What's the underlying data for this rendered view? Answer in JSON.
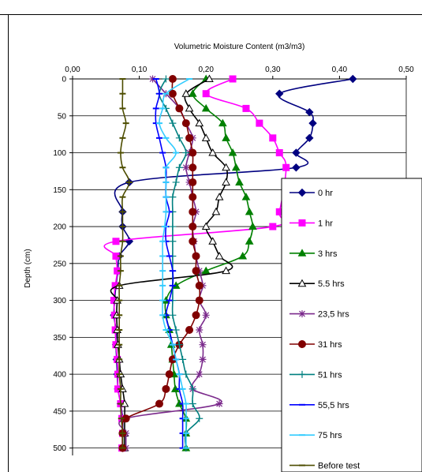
{
  "chart_data": {
    "type": "line",
    "title": "",
    "xlabel": "Volumetric Moisture Content (m3/m3)",
    "ylabel": "Depth (cm)",
    "xlim": [
      0,
      0.5
    ],
    "ylim": [
      0,
      510
    ],
    "x_axis_position": "top",
    "y_inverted": true,
    "x_ticks": [
      "0,00",
      "0,10",
      "0,20",
      "0,30",
      "0,40",
      "0,50"
    ],
    "y_ticks": [
      "0",
      "50",
      "100",
      "150",
      "200",
      "250",
      "300",
      "350",
      "400",
      "450",
      "500"
    ],
    "grid": "horizontal",
    "legend_position": "right",
    "series": [
      {
        "name": "0 hr",
        "color": "#000080",
        "marker": "diamond",
        "depth": [
          0,
          20,
          45,
          60,
          80,
          100,
          120,
          140,
          180,
          200,
          220,
          240,
          260,
          280,
          300,
          320,
          340,
          360,
          380,
          400,
          420,
          440,
          460,
          480,
          500
        ],
        "value": [
          0.42,
          0.31,
          0.355,
          0.36,
          0.355,
          0.335,
          0.335,
          0.085,
          0.075,
          0.075,
          0.085,
          0.07,
          0.068,
          0.065,
          0.063,
          0.062,
          0.065,
          0.065,
          0.066,
          0.067,
          0.068,
          0.072,
          0.075,
          0.075,
          0.075
        ]
      },
      {
        "name": "1 hr",
        "color": "#FF00FF",
        "marker": "square",
        "depth": [
          0,
          20,
          40,
          60,
          80,
          100,
          120,
          180,
          200,
          220,
          240,
          260,
          280,
          300,
          320,
          340,
          360,
          380,
          400,
          420,
          440,
          460,
          480,
          500
        ],
        "value": [
          0.24,
          0.2,
          0.26,
          0.28,
          0.3,
          0.31,
          0.32,
          0.31,
          0.3,
          0.065,
          0.065,
          0.067,
          0.064,
          0.062,
          0.063,
          0.064,
          0.065,
          0.067,
          0.068,
          0.068,
          0.072,
          0.074,
          0.075,
          0.074
        ]
      },
      {
        "name": "3 hrs",
        "color": "#008000",
        "marker": "triangle",
        "depth": [
          0,
          20,
          40,
          60,
          80,
          100,
          120,
          140,
          160,
          180,
          200,
          220,
          240,
          260,
          280,
          300,
          320,
          340,
          360,
          380,
          400,
          420,
          440,
          460,
          480,
          500
        ],
        "value": [
          0.2,
          0.18,
          0.2,
          0.225,
          0.23,
          0.24,
          0.245,
          0.25,
          0.26,
          0.265,
          0.27,
          0.265,
          0.255,
          0.2,
          0.155,
          0.14,
          0.14,
          0.145,
          0.148,
          0.15,
          0.152,
          0.154,
          0.16,
          0.17,
          0.17,
          0.17
        ]
      },
      {
        "name": "5.5 hrs",
        "color": "#000000",
        "marker": "triangle-open",
        "depth": [
          0,
          20,
          40,
          60,
          80,
          100,
          120,
          140,
          160,
          180,
          200,
          220,
          240,
          260,
          280,
          300,
          320,
          340,
          360,
          380,
          400,
          420,
          440,
          460,
          480,
          500
        ],
        "value": [
          0.205,
          0.17,
          0.175,
          0.19,
          0.2,
          0.21,
          0.23,
          0.23,
          0.22,
          0.215,
          0.2,
          0.21,
          0.22,
          0.23,
          0.07,
          0.067,
          0.066,
          0.067,
          0.068,
          0.07,
          0.072,
          0.075,
          0.078,
          0.078,
          0.078,
          0.078
        ]
      },
      {
        "name": "23,5 hrs",
        "color": "#7B2A8C",
        "marker": "star",
        "depth": [
          0,
          20,
          40,
          60,
          80,
          100,
          120,
          140,
          160,
          180,
          200,
          220,
          240,
          260,
          280,
          300,
          320,
          340,
          360,
          380,
          400,
          420,
          440,
          460,
          480,
          500
        ],
        "value": [
          0.12,
          0.14,
          0.16,
          0.17,
          0.18,
          0.175,
          0.17,
          0.175,
          0.18,
          0.185,
          0.18,
          0.182,
          0.185,
          0.19,
          0.195,
          0.19,
          0.2,
          0.19,
          0.195,
          0.195,
          0.19,
          0.18,
          0.22,
          0.08,
          0.08,
          0.08
        ]
      },
      {
        "name": "31 hrs",
        "color": "#800000",
        "marker": "circle",
        "depth": [
          0,
          20,
          40,
          60,
          80,
          100,
          120,
          140,
          160,
          180,
          200,
          220,
          240,
          260,
          280,
          300,
          320,
          340,
          360,
          380,
          400,
          420,
          440,
          460,
          480,
          500
        ],
        "value": [
          0.15,
          0.15,
          0.16,
          0.17,
          0.175,
          0.18,
          0.18,
          0.18,
          0.18,
          0.18,
          0.18,
          0.18,
          0.185,
          0.185,
          0.19,
          0.19,
          0.185,
          0.175,
          0.16,
          0.15,
          0.145,
          0.14,
          0.13,
          0.08,
          0.075,
          0.075
        ]
      },
      {
        "name": "51 hrs",
        "color": "#008080",
        "marker": "plus",
        "depth": [
          0,
          20,
          40,
          60,
          80,
          100,
          120,
          140,
          160,
          180,
          200,
          220,
          240,
          260,
          280,
          300,
          320,
          340,
          360,
          380,
          400,
          420,
          440,
          460,
          480,
          500
        ],
        "value": [
          0.14,
          0.13,
          0.14,
          0.15,
          0.16,
          0.17,
          0.16,
          0.155,
          0.15,
          0.15,
          0.15,
          0.15,
          0.15,
          0.15,
          0.15,
          0.15,
          0.15,
          0.155,
          0.16,
          0.165,
          0.17,
          0.18,
          0.18,
          0.19,
          0.17,
          0.17
        ]
      },
      {
        "name": "55,5 hrs",
        "color": "#0000FF",
        "marker": "dash",
        "depth": [
          0,
          20,
          40,
          60,
          80,
          100,
          120,
          140,
          160,
          180,
          200,
          220,
          240,
          260,
          280,
          300,
          320,
          340,
          360,
          380,
          400,
          420,
          440,
          460,
          480,
          500
        ],
        "value": [
          0.125,
          0.13,
          0.125,
          0.125,
          0.13,
          0.135,
          0.14,
          0.14,
          0.14,
          0.145,
          0.14,
          0.14,
          0.145,
          0.15,
          0.15,
          0.145,
          0.14,
          0.145,
          0.15,
          0.155,
          0.16,
          0.16,
          0.165,
          0.165,
          0.165,
          0.165
        ]
      },
      {
        "name": "75 hrs",
        "color": "#33CCFF",
        "marker": "dash",
        "depth": [
          0,
          20,
          40,
          60,
          80,
          100,
          120,
          140,
          160,
          180,
          200,
          220,
          240,
          260,
          280,
          300,
          320,
          340,
          360,
          380,
          400,
          420,
          440,
          460,
          480,
          500
        ],
        "value": [
          0.175,
          0.14,
          0.135,
          0.13,
          0.14,
          0.155,
          0.14,
          0.14,
          0.14,
          0.14,
          0.138,
          0.135,
          0.135,
          0.135,
          0.135,
          0.135,
          0.135,
          0.14,
          0.15,
          0.155,
          0.16,
          0.165,
          0.17,
          0.17,
          0.17,
          0.17
        ]
      },
      {
        "name": "Before test",
        "color": "#4D4D00",
        "marker": "dash",
        "depth": [
          0,
          20,
          40,
          60,
          80,
          100,
          120,
          140,
          160,
          180,
          200,
          220,
          240,
          260,
          280,
          300,
          320,
          340,
          360,
          380,
          400,
          420,
          440,
          460,
          480,
          500
        ],
        "value": [
          0.075,
          0.075,
          0.075,
          0.08,
          0.075,
          0.072,
          0.075,
          0.085,
          0.075,
          0.075,
          0.075,
          0.075,
          0.072,
          0.072,
          0.07,
          0.07,
          0.07,
          0.07,
          0.07,
          0.07,
          0.07,
          0.072,
          0.072,
          0.073,
          0.075,
          0.075
        ]
      }
    ]
  }
}
